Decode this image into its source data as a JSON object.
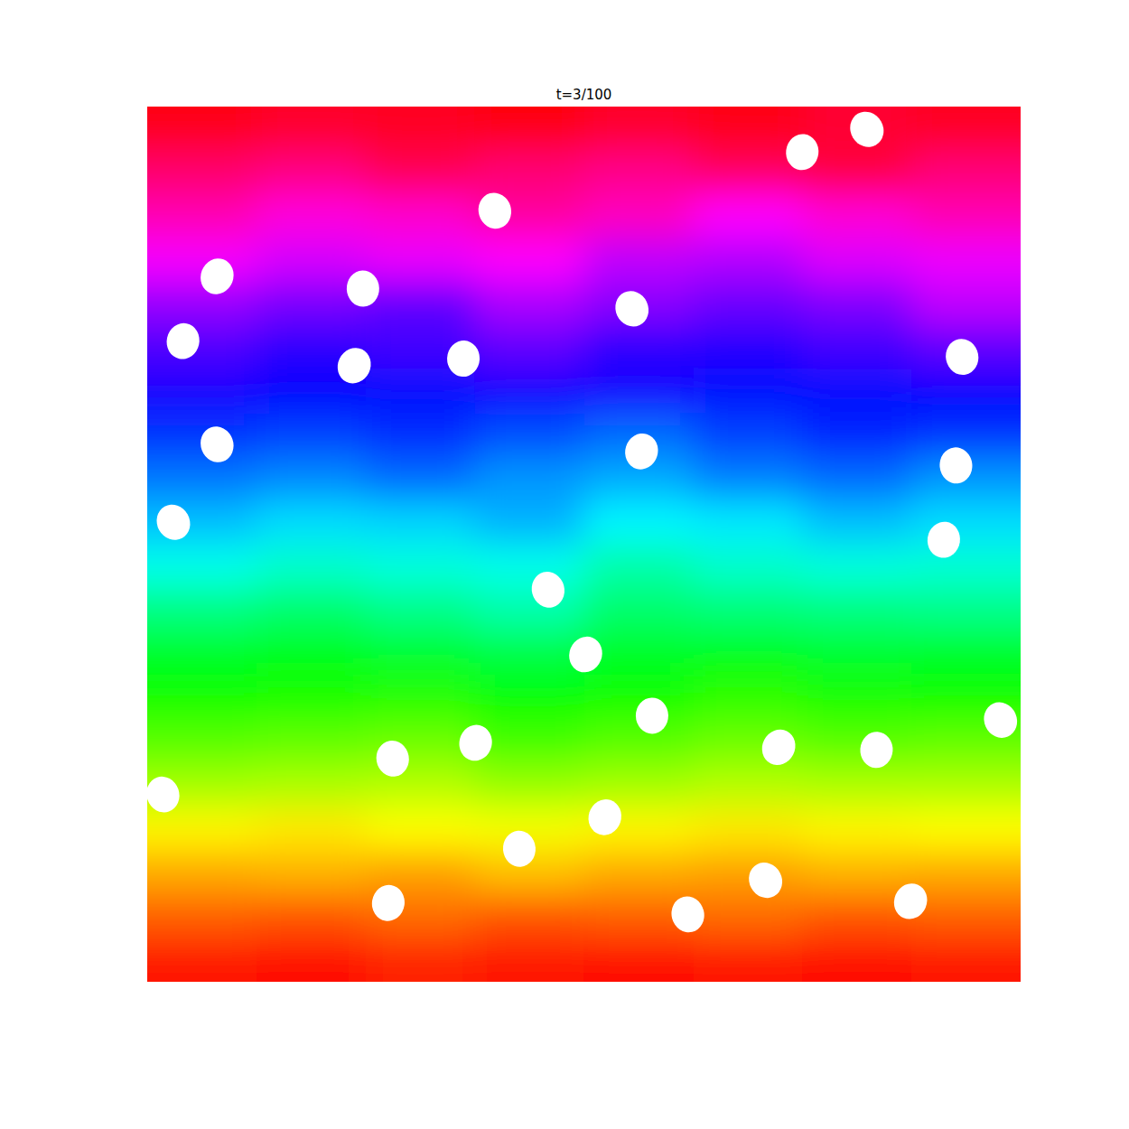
{
  "chart_data": {
    "type": "scatter",
    "title": "t=3/100",
    "xlim": [
      0,
      1
    ],
    "ylim": [
      0,
      1
    ],
    "tick_labels": false,
    "color": "#ffffff",
    "x": [
      0.824,
      0.75,
      0.398,
      0.08,
      0.247,
      0.555,
      0.041,
      0.933,
      0.237,
      0.362,
      0.08,
      0.566,
      0.926,
      0.03,
      0.912,
      0.459,
      0.502,
      0.578,
      0.977,
      0.376,
      0.281,
      0.723,
      0.835,
      0.018,
      0.524,
      0.426,
      0.708,
      0.276,
      0.619,
      0.874
    ],
    "values": [
      0.974,
      0.948,
      0.881,
      0.806,
      0.792,
      0.769,
      0.732,
      0.714,
      0.704,
      0.712,
      0.614,
      0.606,
      0.59,
      0.525,
      0.505,
      0.448,
      0.374,
      0.304,
      0.299,
      0.273,
      0.255,
      0.268,
      0.265,
      0.214,
      0.188,
      0.152,
      0.116,
      0.09,
      0.077,
      0.092
    ],
    "cells": [
      [
        355,
        350,
        352,
        358,
        350,
        354,
        348,
        352
      ],
      [
        335,
        330,
        340,
        333,
        328,
        338,
        345,
        332
      ],
      [
        318,
        308,
        312,
        322,
        315,
        300,
        310,
        318
      ],
      [
        298,
        290,
        295,
        300,
        285,
        282,
        292,
        296
      ],
      [
        275,
        268,
        262,
        280,
        272,
        265,
        270,
        285
      ],
      [
        258,
        250,
        255,
        262,
        250,
        248,
        255,
        262
      ],
      [
        245,
        240,
        238,
        242,
        245,
        238,
        236,
        240
      ],
      [
        228,
        225,
        230,
        222,
        215,
        225,
        232,
        228
      ],
      [
        212,
        208,
        215,
        205,
        200,
        210,
        215,
        205
      ],
      [
        195,
        188,
        190,
        198,
        182,
        185,
        195,
        188
      ],
      [
        175,
        168,
        172,
        175,
        160,
        168,
        172,
        170
      ],
      [
        150,
        145,
        152,
        160,
        145,
        148,
        150,
        152
      ],
      [
        128,
        125,
        130,
        135,
        128,
        125,
        130,
        128
      ],
      [
        118,
        115,
        112,
        120,
        118,
        110,
        115,
        118
      ],
      [
        100,
        98,
        95,
        105,
        100,
        95,
        100,
        98
      ],
      [
        82,
        80,
        78,
        85,
        82,
        78,
        80,
        80
      ],
      [
        58,
        55,
        60,
        62,
        58,
        55,
        58,
        60
      ],
      [
        40,
        42,
        38,
        45,
        40,
        38,
        42,
        40
      ],
      [
        22,
        20,
        25,
        20,
        22,
        25,
        20,
        22
      ],
      [
        5,
        3,
        8,
        5,
        2,
        6,
        4,
        5
      ]
    ]
  }
}
